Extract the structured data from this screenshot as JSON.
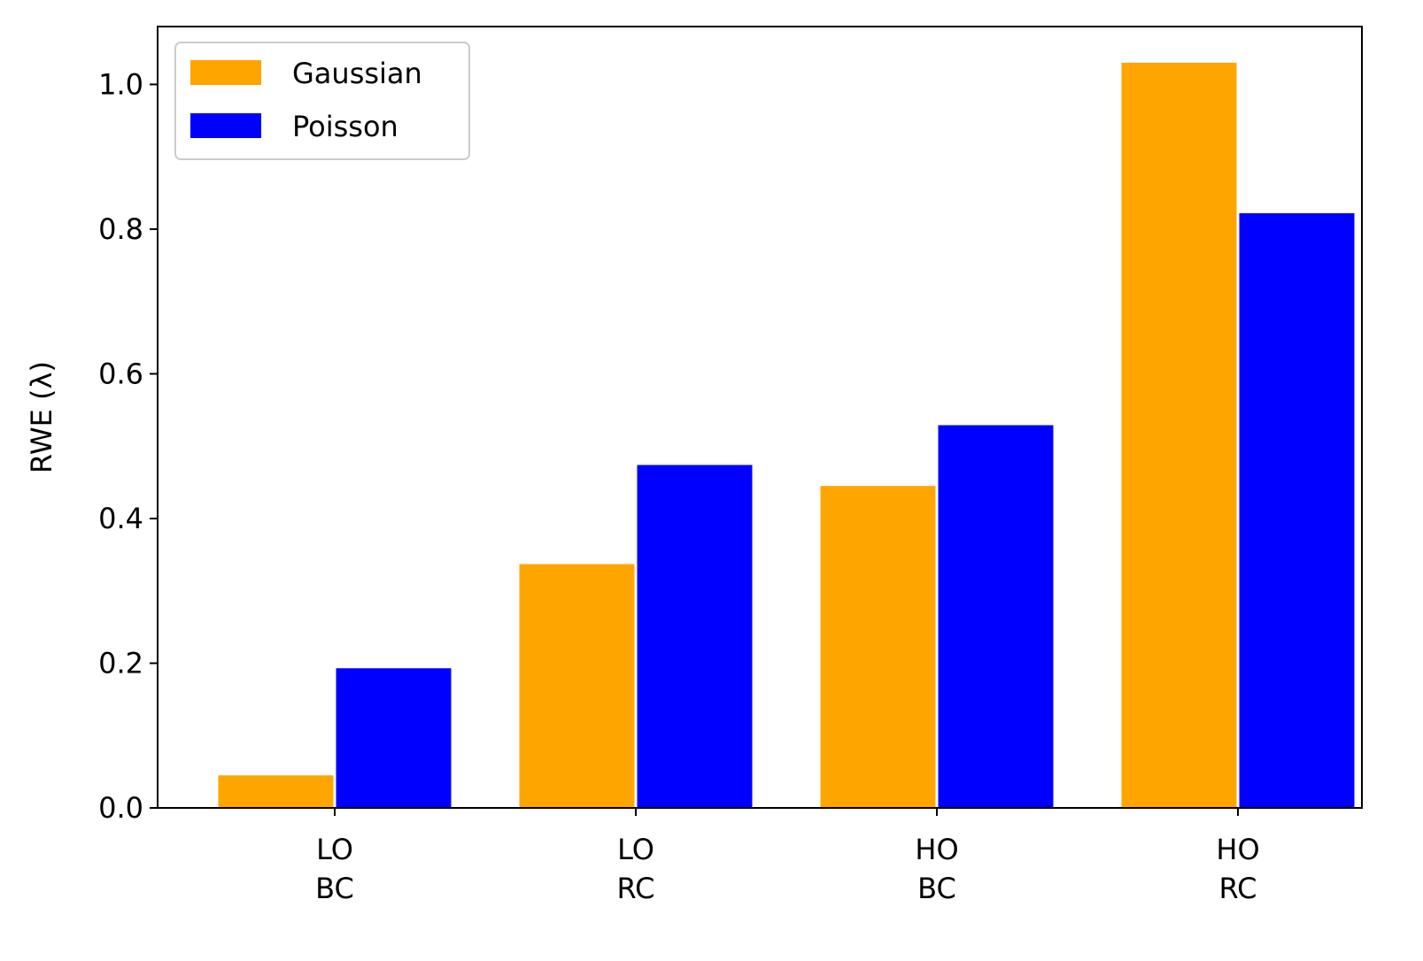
{
  "chart_data": {
    "type": "bar",
    "categories": [
      [
        "LO",
        "BC"
      ],
      [
        "LO",
        "RC"
      ],
      [
        "HO",
        "BC"
      ],
      [
        "HO",
        "RC"
      ]
    ],
    "series": [
      {
        "name": "Gaussian",
        "color": "#FFA500",
        "values": [
          0.045,
          0.337,
          0.445,
          1.03
        ]
      },
      {
        "name": "Poisson",
        "color": "#0000FF",
        "values": [
          0.193,
          0.474,
          0.529,
          0.822
        ]
      }
    ],
    "ylabel": "RWE (λ)",
    "ylim": [
      0,
      1.08
    ],
    "yticks": [
      "0.0",
      "0.2",
      "0.4",
      "0.6",
      "0.8",
      "1.0"
    ],
    "legend_position": "top-left",
    "grid": false
  }
}
